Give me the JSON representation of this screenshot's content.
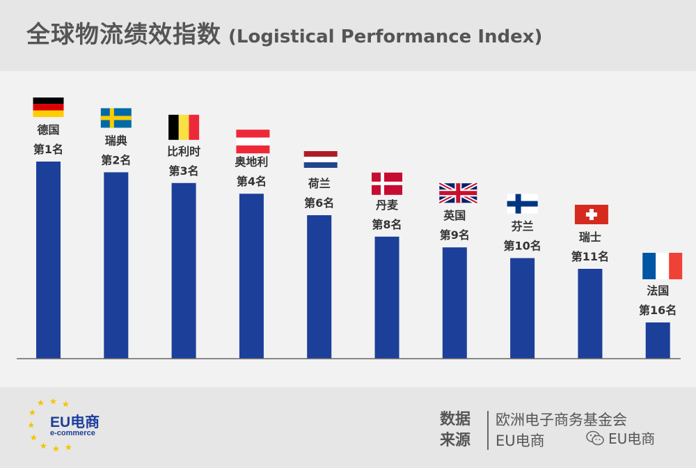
{
  "header": {
    "title": "全球物流绩效指数",
    "subtitle": "(Logistical Performance Index)"
  },
  "chart_data": {
    "type": "bar",
    "categories": [
      "德国",
      "瑞典",
      "比利时",
      "奥地利",
      "荷兰",
      "丹麦",
      "英国",
      "芬兰",
      "瑞士",
      "法国"
    ],
    "rank_labels": [
      "第1名",
      "第2名",
      "第3名",
      "第4名",
      "第6名",
      "第8名",
      "第9名",
      "第10名",
      "第11名",
      "第16名"
    ],
    "ranks": [
      1,
      2,
      3,
      4,
      6,
      8,
      9,
      10,
      11,
      16
    ],
    "flags": [
      "germany-flag",
      "sweden-flag",
      "belgium-flag",
      "austria-flag",
      "netherlands-flag",
      "denmark-flag",
      "uk-flag",
      "finland-flag",
      "switzerland-flag",
      "france-flag"
    ],
    "bar_color": "#1c3f9a",
    "values_note": "bar heights decrease with rank; no value axis shown",
    "grid": false,
    "legend": "none"
  },
  "footer": {
    "logo_text": "EU电商",
    "logo_sub": "e-commerce",
    "source_label": "数据来源",
    "source_org": "欧洲电子商务基金会",
    "source_brand": "EU电商",
    "wechat_account": "EU电商"
  },
  "colors": {
    "header_bg": "#e6e6e6",
    "plot_bg": "#f2f2f2",
    "title_color": "#555555",
    "brand_blue": "#1c3f9a",
    "star_yellow": "#f5c400"
  }
}
